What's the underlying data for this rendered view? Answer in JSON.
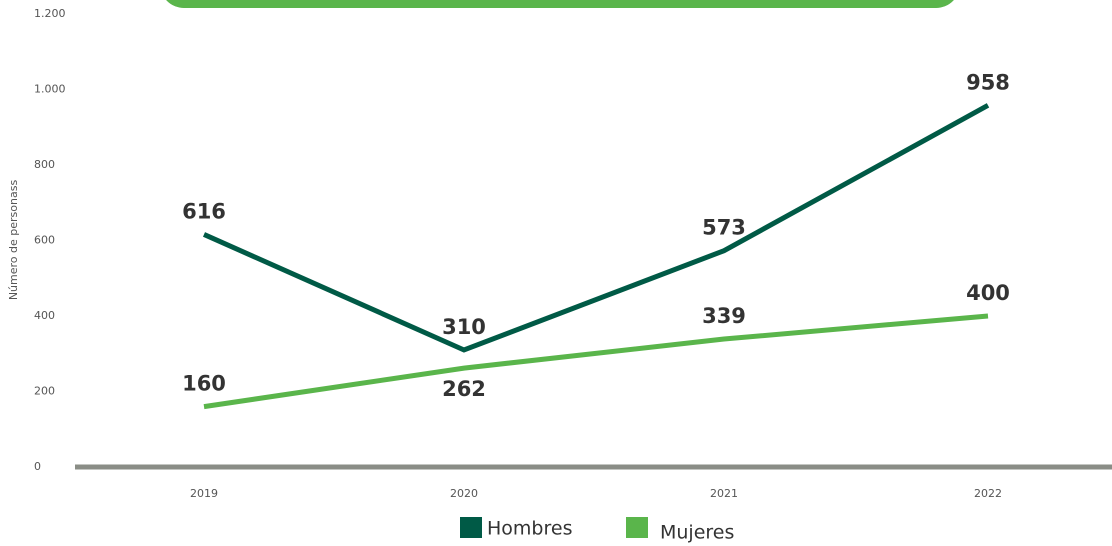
{
  "chart_data": {
    "type": "line",
    "y_label": "Número de personass",
    "categories": [
      "2019",
      "2020",
      "2021",
      "2022"
    ],
    "series": [
      {
        "name": "Hombres",
        "color": "#005a46",
        "values": [
          616,
          310,
          573,
          958
        ]
      },
      {
        "name": "Mujeres",
        "color": "#5ab54b",
        "values": [
          160,
          262,
          339,
          400
        ]
      }
    ],
    "ylim": [
      0,
      1200
    ],
    "yticks": [
      0,
      200,
      400,
      600,
      800,
      {
        "value": 1000,
        "label": "1.000"
      },
      {
        "value": 1200,
        "label": "1.200"
      }
    ],
    "grid": false,
    "legend": "bottom"
  }
}
